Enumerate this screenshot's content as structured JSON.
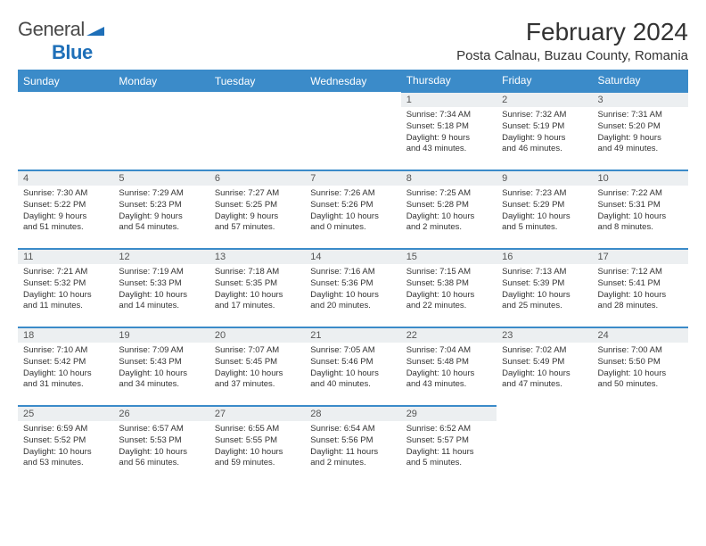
{
  "logo": {
    "text_main": "General",
    "text_sub": "Blue"
  },
  "title": "February 2024",
  "location": "Posta Calnau, Buzau County, Romania",
  "colors": {
    "header_bg": "#3b8bc9",
    "header_text": "#ffffff",
    "daynum_bg": "#eceff1",
    "border": "#3b8bc9",
    "logo_blue": "#1e6fb8"
  },
  "day_names": [
    "Sunday",
    "Monday",
    "Tuesday",
    "Wednesday",
    "Thursday",
    "Friday",
    "Saturday"
  ],
  "weeks": [
    [
      null,
      null,
      null,
      null,
      {
        "n": "1",
        "sr": "Sunrise: 7:34 AM",
        "ss": "Sunset: 5:18 PM",
        "d1": "Daylight: 9 hours",
        "d2": "and 43 minutes."
      },
      {
        "n": "2",
        "sr": "Sunrise: 7:32 AM",
        "ss": "Sunset: 5:19 PM",
        "d1": "Daylight: 9 hours",
        "d2": "and 46 minutes."
      },
      {
        "n": "3",
        "sr": "Sunrise: 7:31 AM",
        "ss": "Sunset: 5:20 PM",
        "d1": "Daylight: 9 hours",
        "d2": "and 49 minutes."
      }
    ],
    [
      {
        "n": "4",
        "sr": "Sunrise: 7:30 AM",
        "ss": "Sunset: 5:22 PM",
        "d1": "Daylight: 9 hours",
        "d2": "and 51 minutes."
      },
      {
        "n": "5",
        "sr": "Sunrise: 7:29 AM",
        "ss": "Sunset: 5:23 PM",
        "d1": "Daylight: 9 hours",
        "d2": "and 54 minutes."
      },
      {
        "n": "6",
        "sr": "Sunrise: 7:27 AM",
        "ss": "Sunset: 5:25 PM",
        "d1": "Daylight: 9 hours",
        "d2": "and 57 minutes."
      },
      {
        "n": "7",
        "sr": "Sunrise: 7:26 AM",
        "ss": "Sunset: 5:26 PM",
        "d1": "Daylight: 10 hours",
        "d2": "and 0 minutes."
      },
      {
        "n": "8",
        "sr": "Sunrise: 7:25 AM",
        "ss": "Sunset: 5:28 PM",
        "d1": "Daylight: 10 hours",
        "d2": "and 2 minutes."
      },
      {
        "n": "9",
        "sr": "Sunrise: 7:23 AM",
        "ss": "Sunset: 5:29 PM",
        "d1": "Daylight: 10 hours",
        "d2": "and 5 minutes."
      },
      {
        "n": "10",
        "sr": "Sunrise: 7:22 AM",
        "ss": "Sunset: 5:31 PM",
        "d1": "Daylight: 10 hours",
        "d2": "and 8 minutes."
      }
    ],
    [
      {
        "n": "11",
        "sr": "Sunrise: 7:21 AM",
        "ss": "Sunset: 5:32 PM",
        "d1": "Daylight: 10 hours",
        "d2": "and 11 minutes."
      },
      {
        "n": "12",
        "sr": "Sunrise: 7:19 AM",
        "ss": "Sunset: 5:33 PM",
        "d1": "Daylight: 10 hours",
        "d2": "and 14 minutes."
      },
      {
        "n": "13",
        "sr": "Sunrise: 7:18 AM",
        "ss": "Sunset: 5:35 PM",
        "d1": "Daylight: 10 hours",
        "d2": "and 17 minutes."
      },
      {
        "n": "14",
        "sr": "Sunrise: 7:16 AM",
        "ss": "Sunset: 5:36 PM",
        "d1": "Daylight: 10 hours",
        "d2": "and 20 minutes."
      },
      {
        "n": "15",
        "sr": "Sunrise: 7:15 AM",
        "ss": "Sunset: 5:38 PM",
        "d1": "Daylight: 10 hours",
        "d2": "and 22 minutes."
      },
      {
        "n": "16",
        "sr": "Sunrise: 7:13 AM",
        "ss": "Sunset: 5:39 PM",
        "d1": "Daylight: 10 hours",
        "d2": "and 25 minutes."
      },
      {
        "n": "17",
        "sr": "Sunrise: 7:12 AM",
        "ss": "Sunset: 5:41 PM",
        "d1": "Daylight: 10 hours",
        "d2": "and 28 minutes."
      }
    ],
    [
      {
        "n": "18",
        "sr": "Sunrise: 7:10 AM",
        "ss": "Sunset: 5:42 PM",
        "d1": "Daylight: 10 hours",
        "d2": "and 31 minutes."
      },
      {
        "n": "19",
        "sr": "Sunrise: 7:09 AM",
        "ss": "Sunset: 5:43 PM",
        "d1": "Daylight: 10 hours",
        "d2": "and 34 minutes."
      },
      {
        "n": "20",
        "sr": "Sunrise: 7:07 AM",
        "ss": "Sunset: 5:45 PM",
        "d1": "Daylight: 10 hours",
        "d2": "and 37 minutes."
      },
      {
        "n": "21",
        "sr": "Sunrise: 7:05 AM",
        "ss": "Sunset: 5:46 PM",
        "d1": "Daylight: 10 hours",
        "d2": "and 40 minutes."
      },
      {
        "n": "22",
        "sr": "Sunrise: 7:04 AM",
        "ss": "Sunset: 5:48 PM",
        "d1": "Daylight: 10 hours",
        "d2": "and 43 minutes."
      },
      {
        "n": "23",
        "sr": "Sunrise: 7:02 AM",
        "ss": "Sunset: 5:49 PM",
        "d1": "Daylight: 10 hours",
        "d2": "and 47 minutes."
      },
      {
        "n": "24",
        "sr": "Sunrise: 7:00 AM",
        "ss": "Sunset: 5:50 PM",
        "d1": "Daylight: 10 hours",
        "d2": "and 50 minutes."
      }
    ],
    [
      {
        "n": "25",
        "sr": "Sunrise: 6:59 AM",
        "ss": "Sunset: 5:52 PM",
        "d1": "Daylight: 10 hours",
        "d2": "and 53 minutes."
      },
      {
        "n": "26",
        "sr": "Sunrise: 6:57 AM",
        "ss": "Sunset: 5:53 PM",
        "d1": "Daylight: 10 hours",
        "d2": "and 56 minutes."
      },
      {
        "n": "27",
        "sr": "Sunrise: 6:55 AM",
        "ss": "Sunset: 5:55 PM",
        "d1": "Daylight: 10 hours",
        "d2": "and 59 minutes."
      },
      {
        "n": "28",
        "sr": "Sunrise: 6:54 AM",
        "ss": "Sunset: 5:56 PM",
        "d1": "Daylight: 11 hours",
        "d2": "and 2 minutes."
      },
      {
        "n": "29",
        "sr": "Sunrise: 6:52 AM",
        "ss": "Sunset: 5:57 PM",
        "d1": "Daylight: 11 hours",
        "d2": "and 5 minutes."
      },
      null,
      null
    ]
  ]
}
